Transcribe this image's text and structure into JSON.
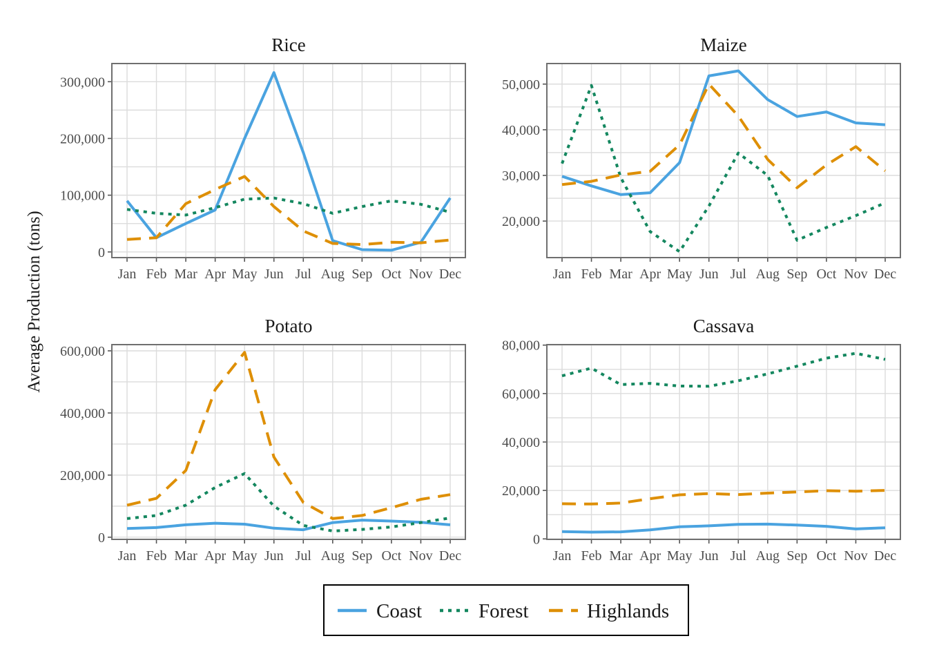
{
  "chart_data": {
    "type": "line",
    "ylabel": "Average Production (tons)",
    "months": [
      "Jan",
      "Feb",
      "Mar",
      "Apr",
      "May",
      "Jun",
      "Jul",
      "Aug",
      "Sep",
      "Oct",
      "Nov",
      "Dec"
    ],
    "legend": {
      "placement": "bottom",
      "entries": [
        {
          "name": "Coast",
          "color": "#4aa3e0",
          "dash": "solid"
        },
        {
          "name": "Forest",
          "color": "#14875f",
          "dash": "dotted"
        },
        {
          "name": "Highlands",
          "color": "#de8f05",
          "dash": "dashed"
        }
      ]
    },
    "panels": [
      {
        "title": "Rice",
        "ylim": [
          -10000,
          332000
        ],
        "yticks": [
          0,
          100000,
          200000,
          300000
        ],
        "ytick_labels": [
          "0",
          "100,000",
          "200,000",
          "300,000"
        ],
        "series": [
          {
            "name": "Coast",
            "values": [
              90000,
              25000,
              50000,
              74000,
              200000,
              316000,
              175000,
              20000,
              4000,
              3000,
              17000,
              95000
            ]
          },
          {
            "name": "Forest",
            "values": [
              75000,
              68000,
              65000,
              78000,
              93000,
              95000,
              85000,
              68000,
              80000,
              90000,
              84000,
              70000
            ]
          },
          {
            "name": "Highlands",
            "values": [
              22000,
              25000,
              85000,
              110000,
              133000,
              80000,
              37000,
              15000,
              13000,
              17000,
              16000,
              21000
            ]
          }
        ]
      },
      {
        "title": "Maize",
        "ylim": [
          12000,
          54500
        ],
        "yticks": [
          20000,
          30000,
          40000,
          50000
        ],
        "ytick_labels": [
          "20,000",
          "30,000",
          "40,000",
          "50,000"
        ],
        "series": [
          {
            "name": "Coast",
            "values": [
              29800,
              27700,
              25800,
              26200,
              32800,
              51800,
              52900,
              46600,
              42900,
              43900,
              41500,
              41100
            ]
          },
          {
            "name": "Forest",
            "values": [
              32600,
              49700,
              29500,
              17700,
              13300,
              23300,
              34900,
              30000,
              15800,
              18600,
              21200,
              24000
            ]
          },
          {
            "name": "Highlands",
            "values": [
              28000,
              28700,
              30100,
              30900,
              36700,
              50000,
              43000,
              33500,
              27300,
              32300,
              36300,
              31000
            ]
          }
        ]
      },
      {
        "title": "Potato",
        "ylim": [
          -7000,
          620000
        ],
        "yticks": [
          0,
          200000,
          400000,
          600000
        ],
        "ytick_labels": [
          "0",
          "200,000",
          "400,000",
          "600,000"
        ],
        "series": [
          {
            "name": "Coast",
            "values": [
              28000,
              31000,
              40000,
              45000,
              42000,
              29000,
              24000,
              47000,
              55000,
              52000,
              48000,
              40000
            ]
          },
          {
            "name": "Forest",
            "values": [
              60000,
              70000,
              103000,
              160000,
              205000,
              100000,
              38000,
              20000,
              25000,
              33000,
              47000,
              62000
            ]
          },
          {
            "name": "Highlands",
            "values": [
              103000,
              125000,
              215000,
              475000,
              595000,
              258000,
              112000,
              60000,
              70000,
              95000,
              122000,
              137000
            ]
          }
        ]
      },
      {
        "title": "Cassava",
        "ylim": [
          -200,
          80200
        ],
        "yticks": [
          0,
          20000,
          40000,
          60000,
          80000
        ],
        "ytick_labels": [
          "0",
          "20,000",
          "40,000",
          "60,000",
          "80,000"
        ],
        "series": [
          {
            "name": "Coast",
            "values": [
              3000,
              2800,
              2900,
              3700,
              5000,
              5400,
              6000,
              6100,
              5700,
              5200,
              4100,
              4600
            ]
          },
          {
            "name": "Forest",
            "values": [
              67300,
              70500,
              63700,
              64200,
              63100,
              63000,
              65300,
              68100,
              71300,
              74600,
              76600,
              74100
            ]
          },
          {
            "name": "Highlands",
            "values": [
              14500,
              14400,
              14800,
              16600,
              18200,
              18700,
              18300,
              18900,
              19400,
              19900,
              19700,
              20000
            ]
          }
        ]
      }
    ]
  }
}
